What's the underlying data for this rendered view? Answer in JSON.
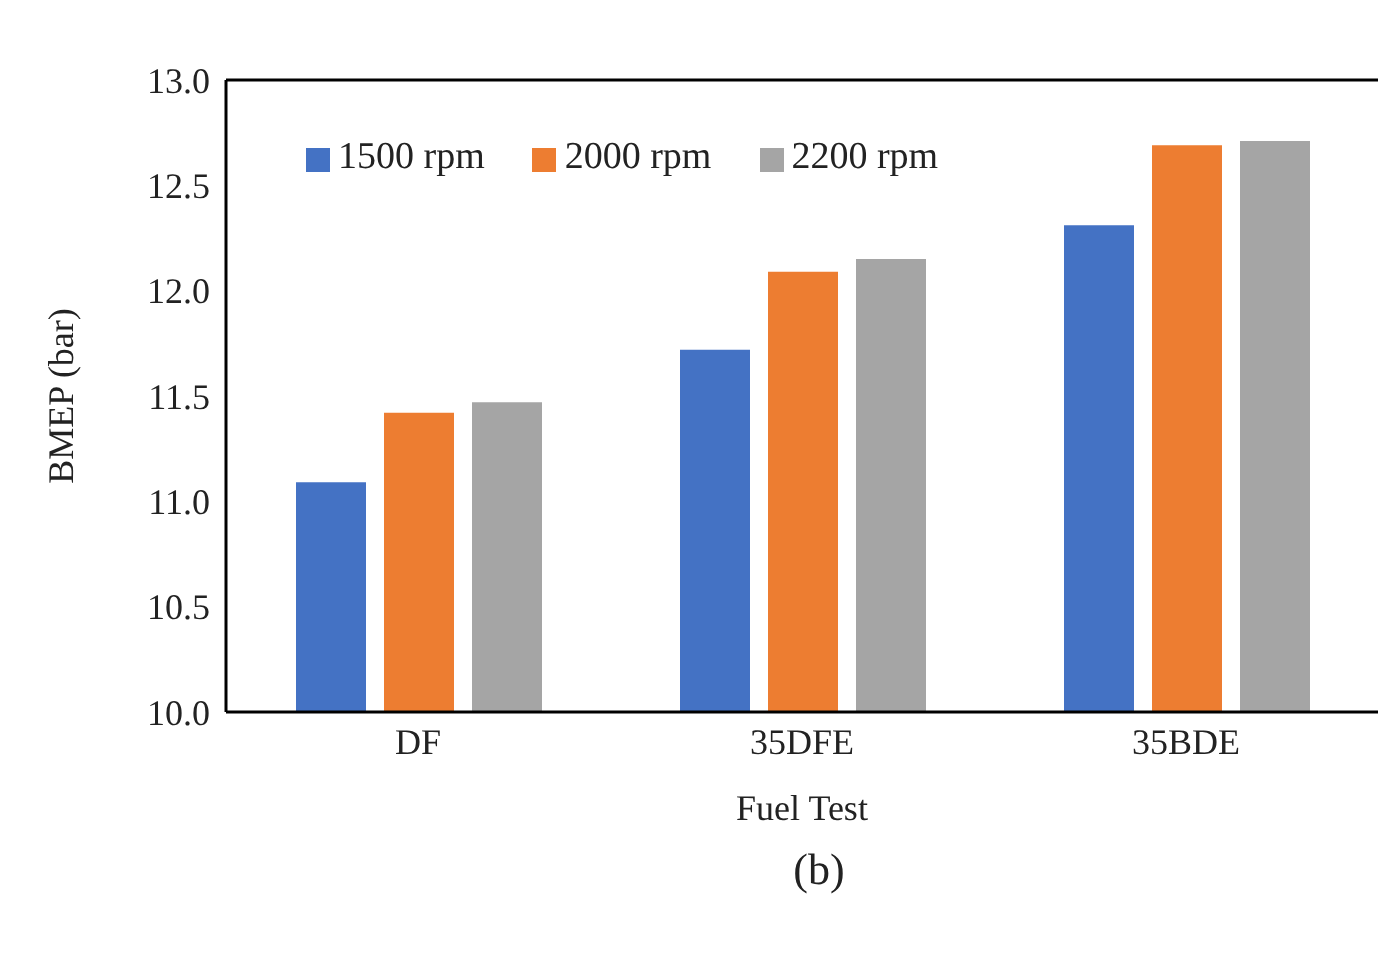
{
  "chart_data": {
    "type": "bar",
    "xlabel": "Fuel Test",
    "ylabel": "BMEP (bar)",
    "categories": [
      "DF",
      "35DFE",
      "35BDE"
    ],
    "series": [
      {
        "name": "1500 rpm",
        "color": "#4472c4",
        "values": [
          11.09,
          11.72,
          12.31
        ]
      },
      {
        "name": "2000 rpm",
        "color": "#ed7d31",
        "values": [
          11.42,
          12.09,
          12.69
        ]
      },
      {
        "name": "2200 rpm",
        "color": "#a5a5a5",
        "values": [
          11.47,
          12.15,
          12.71
        ]
      }
    ],
    "ylim": [
      10.0,
      13.0
    ],
    "yticks": [
      {
        "value": 10,
        "label": "10.0"
      },
      {
        "value": 10.5,
        "label": "10.5"
      },
      {
        "value": 11,
        "label": "11.0"
      },
      {
        "value": 11.5,
        "label": "11.5"
      },
      {
        "value": 12,
        "label": "12.0"
      },
      {
        "value": 12.5,
        "label": "12.5"
      },
      {
        "value": 13,
        "label": "13.0"
      }
    ],
    "grid": false,
    "legend": "top left",
    "annotations": [
      "(b)"
    ]
  }
}
